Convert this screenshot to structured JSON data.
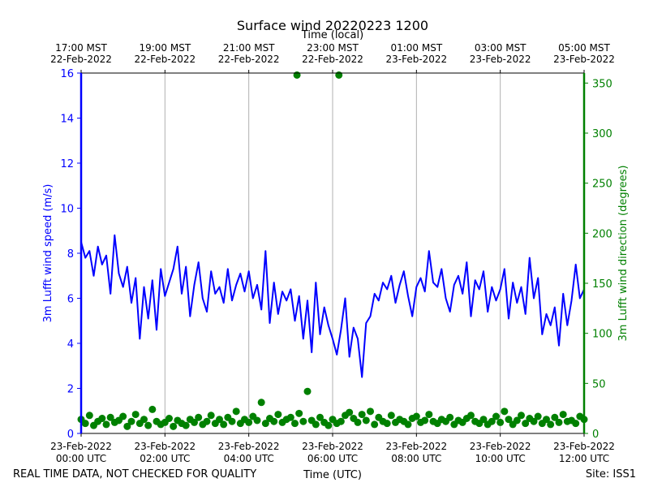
{
  "chart_data": {
    "type": "line",
    "title": "Surface wind 20220223 1200",
    "top_axis_label": "Time (local)",
    "xlabel": "Time (UTC)",
    "ylabel_left": "3m Lufft wind speed (m/s)",
    "ylabel_right": "3m Lufft wind direction (degrees)",
    "footer_left": "REAL TIME DATA, NOT CHECKED FOR QUALITY",
    "footer_right": "Site: ISS1",
    "x_range_hours": [
      0,
      12
    ],
    "y_left_range": [
      0,
      16
    ],
    "y_right_range": [
      0,
      360
    ],
    "y_left_ticks": [
      "0",
      "2",
      "4",
      "6",
      "8",
      "10",
      "12",
      "14",
      "16"
    ],
    "y_right_ticks": [
      "0",
      "50",
      "100",
      "150",
      "200",
      "250",
      "300",
      "350"
    ],
    "bottom_ticks": [
      {
        "line1": "23-Feb-2022",
        "line2": "00:00 UTC"
      },
      {
        "line1": "23-Feb-2022",
        "line2": "02:00 UTC"
      },
      {
        "line1": "23-Feb-2022",
        "line2": "04:00 UTC"
      },
      {
        "line1": "23-Feb-2022",
        "line2": "06:00 UTC"
      },
      {
        "line1": "23-Feb-2022",
        "line2": "08:00 UTC"
      },
      {
        "line1": "23-Feb-2022",
        "line2": "10:00 UTC"
      },
      {
        "line1": "23-Feb-2022",
        "line2": "12:00 UTC"
      }
    ],
    "top_ticks": [
      {
        "line1": "17:00 MST",
        "line2": "22-Feb-2022"
      },
      {
        "line1": "19:00 MST",
        "line2": "22-Feb-2022"
      },
      {
        "line1": "21:00 MST",
        "line2": "22-Feb-2022"
      },
      {
        "line1": "23:00 MST",
        "line2": "22-Feb-2022"
      },
      {
        "line1": "01:00 MST",
        "line2": "23-Feb-2022"
      },
      {
        "line1": "03:00 MST",
        "line2": "23-Feb-2022"
      },
      {
        "line1": "05:00 MST",
        "line2": "23-Feb-2022"
      }
    ],
    "grid": "vertical",
    "colors": {
      "speed": "#0000ff",
      "direction": "#008000",
      "grid": "#b0b0b0"
    },
    "series": [
      {
        "x_hours": [
          0,
          0.1,
          0.2,
          0.3,
          0.4,
          0.5,
          0.6,
          0.7,
          0.8,
          0.9,
          1.0,
          1.1,
          1.2,
          1.3,
          1.4,
          1.5,
          1.6,
          1.7,
          1.8,
          1.9,
          2.0,
          2.1,
          2.2,
          2.3,
          2.4,
          2.5,
          2.6,
          2.7,
          2.8,
          2.9,
          3.0,
          3.1,
          3.2,
          3.3,
          3.4,
          3.5,
          3.6,
          3.7,
          3.8,
          3.9,
          4.0,
          4.1,
          4.2,
          4.3,
          4.4,
          4.5,
          4.6,
          4.7,
          4.8,
          4.9,
          5.0,
          5.1,
          5.2,
          5.3,
          5.4,
          5.5,
          5.6,
          5.7,
          5.8,
          5.9,
          6.0,
          6.1,
          6.2,
          6.3,
          6.4,
          6.5,
          6.6,
          6.7,
          6.8,
          6.9,
          7.0,
          7.1,
          7.2,
          7.3,
          7.4,
          7.5,
          7.6,
          7.7,
          7.8,
          7.9,
          8.0,
          8.1,
          8.2,
          8.3,
          8.4,
          8.5,
          8.6,
          8.7,
          8.8,
          8.9,
          9.0,
          9.1,
          9.2,
          9.3,
          9.4,
          9.5,
          9.6,
          9.7,
          9.8,
          9.9,
          10.0,
          10.1,
          10.2,
          10.3,
          10.4,
          10.5,
          10.6,
          10.7,
          10.8,
          10.9,
          11.0,
          11.1,
          11.2,
          11.3,
          11.4,
          11.5,
          11.6,
          11.7,
          11.8,
          11.9,
          12.0
        ],
        "values": [
          8.5,
          7.8,
          8.1,
          7.0,
          8.3,
          7.5,
          7.9,
          6.2,
          8.8,
          7.1,
          6.5,
          7.4,
          5.8,
          6.9,
          4.2,
          6.5,
          5.1,
          6.8,
          4.6,
          7.3,
          6.1,
          6.7,
          7.3,
          8.3,
          6.2,
          7.4,
          5.2,
          6.6,
          7.6,
          6.0,
          5.4,
          7.2,
          6.2,
          6.5,
          5.8,
          7.3,
          5.9,
          6.6,
          7.1,
          6.3,
          7.2,
          6.0,
          6.6,
          5.5,
          8.1,
          4.9,
          6.7,
          5.3,
          6.3,
          5.9,
          6.4,
          5.0,
          6.1,
          4.2,
          5.9,
          3.6,
          6.7,
          4.4,
          5.6,
          4.8,
          4.2,
          3.5,
          4.6,
          6.0,
          3.4,
          4.7,
          4.2,
          2.5,
          4.9,
          5.2,
          6.2,
          5.9,
          6.7,
          6.4,
          7.0,
          5.8,
          6.6,
          7.2,
          6.1,
          5.2,
          6.5,
          6.9,
          6.3,
          8.1,
          6.7,
          6.5,
          7.3,
          6.0,
          5.4,
          6.6,
          7.0,
          6.2,
          7.6,
          5.2,
          6.8,
          6.4,
          7.2,
          5.4,
          6.5,
          5.9,
          6.4,
          7.3,
          5.1,
          6.7,
          5.8,
          6.5,
          5.3,
          7.8,
          6.0,
          6.9,
          4.4,
          5.3,
          4.8,
          5.6,
          3.9,
          6.2,
          4.8,
          5.9,
          7.5,
          6.0,
          6.4
        ]
      },
      {
        "x_hours": [
          0,
          0.1,
          0.2,
          0.3,
          0.4,
          0.5,
          0.6,
          0.7,
          0.8,
          0.9,
          1.0,
          1.1,
          1.2,
          1.3,
          1.4,
          1.5,
          1.6,
          1.7,
          1.8,
          1.9,
          2.0,
          2.1,
          2.2,
          2.3,
          2.4,
          2.5,
          2.6,
          2.7,
          2.8,
          2.9,
          3.0,
          3.1,
          3.2,
          3.3,
          3.4,
          3.5,
          3.6,
          3.7,
          3.8,
          3.9,
          4.0,
          4.1,
          4.2,
          4.3,
          4.4,
          4.5,
          4.6,
          4.7,
          4.8,
          4.9,
          5.0,
          5.1,
          5.15,
          5.2,
          5.3,
          5.4,
          5.5,
          5.6,
          5.7,
          5.8,
          5.9,
          6.0,
          6.1,
          6.15,
          6.2,
          6.3,
          6.4,
          6.5,
          6.6,
          6.7,
          6.8,
          6.9,
          7.0,
          7.1,
          7.2,
          7.3,
          7.4,
          7.5,
          7.6,
          7.7,
          7.8,
          7.9,
          8.0,
          8.1,
          8.2,
          8.3,
          8.4,
          8.5,
          8.6,
          8.7,
          8.8,
          8.9,
          9.0,
          9.1,
          9.2,
          9.3,
          9.4,
          9.5,
          9.6,
          9.7,
          9.8,
          9.9,
          10.0,
          10.1,
          10.2,
          10.3,
          10.4,
          10.5,
          10.6,
          10.7,
          10.8,
          10.9,
          11.0,
          11.1,
          11.2,
          11.3,
          11.4,
          11.5,
          11.6,
          11.7,
          11.8,
          11.9,
          12.0
        ],
        "values": [
          14,
          10,
          18,
          8,
          12,
          15,
          9,
          16,
          11,
          13,
          17,
          7,
          12,
          19,
          10,
          14,
          8,
          24,
          12,
          9,
          11,
          15,
          7,
          13,
          10,
          8,
          14,
          11,
          16,
          9,
          12,
          18,
          10,
          14,
          9,
          16,
          12,
          22,
          10,
          14,
          11,
          17,
          13,
          31,
          10,
          15,
          12,
          19,
          11,
          14,
          16,
          10,
          358,
          20,
          12,
          42,
          13,
          9,
          16,
          11,
          8,
          14,
          10,
          358,
          12,
          18,
          21,
          15,
          11,
          19,
          13,
          22,
          9,
          16,
          12,
          10,
          18,
          11,
          14,
          12,
          9,
          15,
          17,
          11,
          13,
          19,
          12,
          10,
          14,
          12,
          16,
          9,
          13,
          11,
          15,
          18,
          12,
          10,
          14,
          9,
          12,
          17,
          11,
          22,
          14,
          9,
          13,
          18,
          10,
          15,
          12,
          17,
          10,
          14,
          9,
          16,
          11,
          19,
          12,
          13,
          10,
          17,
          14
        ]
      }
    ]
  }
}
